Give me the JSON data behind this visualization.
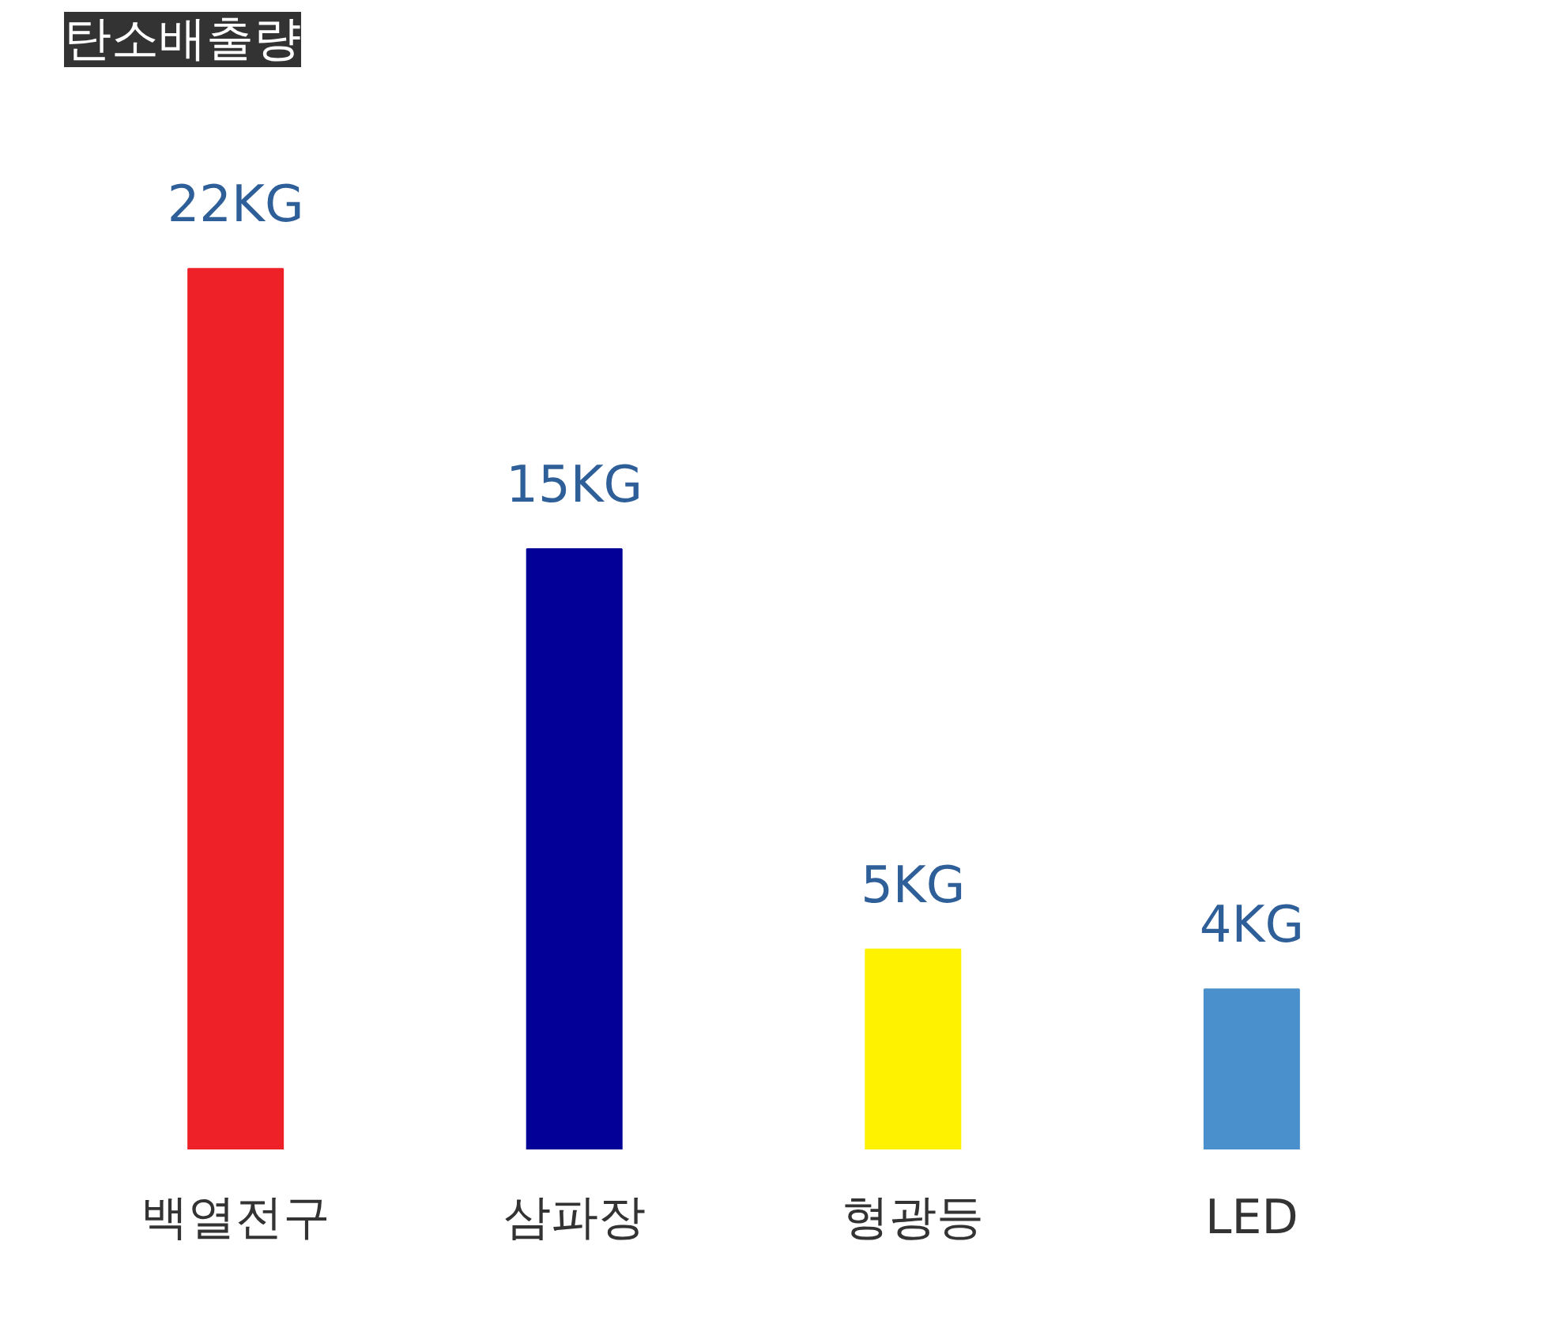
{
  "chart_data": {
    "type": "bar",
    "title": "탄소배출량",
    "categories": [
      "백열전구",
      "삼파장",
      "형광등",
      "LED"
    ],
    "values": [
      22,
      15,
      5,
      4
    ],
    "colors": [
      "#ee2028",
      "#020096",
      "#fff200",
      "#4a90cc"
    ],
    "value_labels": [
      "22KG",
      "15KG",
      "5KG",
      "4KG"
    ],
    "grid": false
  }
}
